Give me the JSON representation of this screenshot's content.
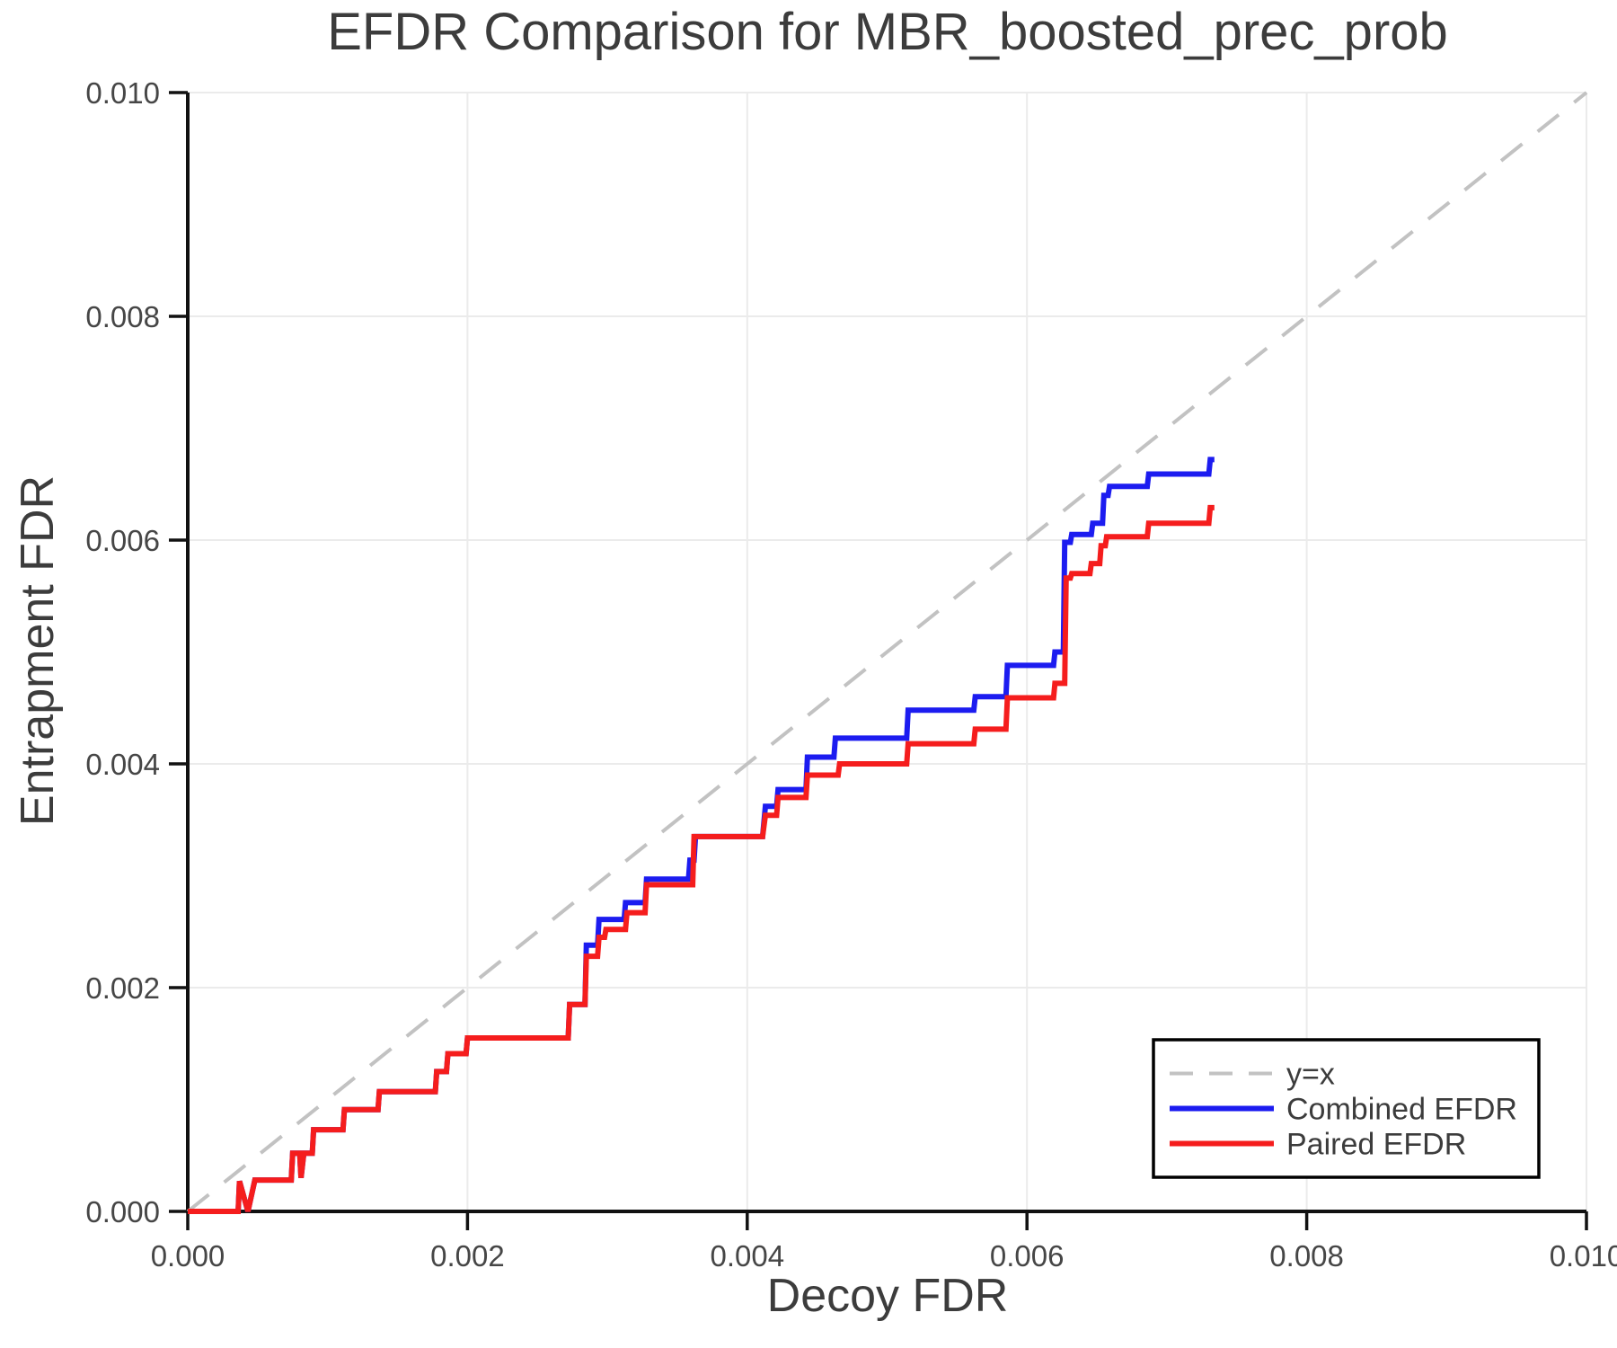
{
  "chart_data": {
    "type": "line",
    "title": "EFDR Comparison for MBR_boosted_prec_prob",
    "xlabel": "Decoy FDR",
    "ylabel": "Entrapment FDR",
    "xlim": [
      0.0,
      0.01
    ],
    "ylim": [
      0.0,
      0.01
    ],
    "grid": true,
    "xticks": {
      "values": [
        0.0,
        0.002,
        0.004,
        0.006,
        0.008,
        0.01
      ],
      "labels": [
        "0.000",
        "0.002",
        "0.004",
        "0.006",
        "0.008",
        "0.010"
      ]
    },
    "yticks": {
      "values": [
        0.0,
        0.002,
        0.004,
        0.006,
        0.008,
        0.01
      ],
      "labels": [
        "0.000",
        "0.002",
        "0.004",
        "0.006",
        "0.008",
        "0.010"
      ]
    },
    "legend": {
      "position": "lower right",
      "entries": [
        "y=x",
        "Combined EFDR",
        "Paired EFDR"
      ]
    },
    "colors": {
      "identity": "#c2c2c2",
      "combined": "#1c1cf0",
      "paired": "#f51d1d"
    },
    "series": [
      {
        "name": "y=x",
        "style": "dashed",
        "color": "#c2c2c2",
        "width": 4,
        "points": [
          [
            0.0,
            0.0
          ],
          [
            0.01,
            0.01
          ]
        ]
      },
      {
        "name": "Combined EFDR",
        "style": "solid",
        "color": "#1c1cf0",
        "width": 6,
        "points": [
          [
            0.0,
            0.0
          ],
          [
            0.00036,
            0.0
          ],
          [
            0.00037,
            0.00027
          ],
          [
            0.00043,
            0.0
          ],
          [
            0.00048,
            0.00028
          ],
          [
            0.00074,
            0.00028
          ],
          [
            0.00075,
            0.00052
          ],
          [
            0.0008,
            0.00052
          ],
          [
            0.00081,
            0.0003
          ],
          [
            0.00083,
            0.00052
          ],
          [
            0.00089,
            0.00052
          ],
          [
            0.0009,
            0.00073
          ],
          [
            0.00111,
            0.00073
          ],
          [
            0.00112,
            0.00091
          ],
          [
            0.00136,
            0.00091
          ],
          [
            0.00137,
            0.00107
          ],
          [
            0.00177,
            0.00107
          ],
          [
            0.00178,
            0.00125
          ],
          [
            0.00185,
            0.00125
          ],
          [
            0.00186,
            0.00141
          ],
          [
            0.00199,
            0.00141
          ],
          [
            0.002,
            0.00155
          ],
          [
            0.00272,
            0.00155
          ],
          [
            0.00273,
            0.00185
          ],
          [
            0.00284,
            0.00185
          ],
          [
            0.00285,
            0.00238
          ],
          [
            0.00293,
            0.00238
          ],
          [
            0.00294,
            0.00261
          ],
          [
            0.00312,
            0.00261
          ],
          [
            0.00313,
            0.00276
          ],
          [
            0.00327,
            0.00276
          ],
          [
            0.00328,
            0.00297
          ],
          [
            0.00358,
            0.00297
          ],
          [
            0.00359,
            0.00314
          ],
          [
            0.00362,
            0.00314
          ],
          [
            0.00363,
            0.00335
          ],
          [
            0.00411,
            0.00335
          ],
          [
            0.00413,
            0.00362
          ],
          [
            0.00421,
            0.00362
          ],
          [
            0.00422,
            0.00377
          ],
          [
            0.00442,
            0.00377
          ],
          [
            0.00443,
            0.00406
          ],
          [
            0.00462,
            0.00406
          ],
          [
            0.00463,
            0.00423
          ],
          [
            0.00514,
            0.00423
          ],
          [
            0.00515,
            0.00448
          ],
          [
            0.00562,
            0.00448
          ],
          [
            0.00563,
            0.0046
          ],
          [
            0.00585,
            0.0046
          ],
          [
            0.00586,
            0.00488
          ],
          [
            0.00619,
            0.00488
          ],
          [
            0.0062,
            0.005
          ],
          [
            0.00626,
            0.005
          ],
          [
            0.00627,
            0.00598
          ],
          [
            0.00631,
            0.00598
          ],
          [
            0.00632,
            0.00605
          ],
          [
            0.00646,
            0.00605
          ],
          [
            0.00647,
            0.00615
          ],
          [
            0.00654,
            0.00615
          ],
          [
            0.00655,
            0.0064
          ],
          [
            0.00658,
            0.0064
          ],
          [
            0.00659,
            0.00648
          ],
          [
            0.00686,
            0.00648
          ],
          [
            0.00687,
            0.00659
          ],
          [
            0.0073,
            0.00659
          ],
          [
            0.00731,
            0.00672
          ],
          [
            0.00734,
            0.00672
          ]
        ]
      },
      {
        "name": "Paired EFDR",
        "style": "solid",
        "color": "#f51d1d",
        "width": 6,
        "points": [
          [
            0.0,
            0.0
          ],
          [
            0.00036,
            0.0
          ],
          [
            0.00037,
            0.00027
          ],
          [
            0.00043,
            0.0
          ],
          [
            0.00048,
            0.00028
          ],
          [
            0.00074,
            0.00028
          ],
          [
            0.00075,
            0.00052
          ],
          [
            0.0008,
            0.00052
          ],
          [
            0.00081,
            0.0003
          ],
          [
            0.00083,
            0.00052
          ],
          [
            0.00089,
            0.00052
          ],
          [
            0.0009,
            0.00073
          ],
          [
            0.00111,
            0.00073
          ],
          [
            0.00112,
            0.00091
          ],
          [
            0.00136,
            0.00091
          ],
          [
            0.00137,
            0.00107
          ],
          [
            0.00177,
            0.00107
          ],
          [
            0.00178,
            0.00125
          ],
          [
            0.00185,
            0.00125
          ],
          [
            0.00186,
            0.00141
          ],
          [
            0.00199,
            0.00141
          ],
          [
            0.002,
            0.00155
          ],
          [
            0.00272,
            0.00155
          ],
          [
            0.00273,
            0.00185
          ],
          [
            0.00284,
            0.00185
          ],
          [
            0.00285,
            0.00228
          ],
          [
            0.00293,
            0.00228
          ],
          [
            0.00294,
            0.00245
          ],
          [
            0.00298,
            0.00245
          ],
          [
            0.00299,
            0.00252
          ],
          [
            0.00313,
            0.00252
          ],
          [
            0.00314,
            0.00267
          ],
          [
            0.00327,
            0.00267
          ],
          [
            0.00328,
            0.00292
          ],
          [
            0.00361,
            0.00292
          ],
          [
            0.00362,
            0.00335
          ],
          [
            0.00411,
            0.00335
          ],
          [
            0.00413,
            0.00354
          ],
          [
            0.00421,
            0.00354
          ],
          [
            0.00422,
            0.0037
          ],
          [
            0.00442,
            0.0037
          ],
          [
            0.00443,
            0.0039
          ],
          [
            0.00465,
            0.0039
          ],
          [
            0.00466,
            0.004
          ],
          [
            0.00514,
            0.004
          ],
          [
            0.00515,
            0.00418
          ],
          [
            0.00562,
            0.00418
          ],
          [
            0.00563,
            0.00431
          ],
          [
            0.00585,
            0.00431
          ],
          [
            0.00586,
            0.00459
          ],
          [
            0.00619,
            0.00459
          ],
          [
            0.0062,
            0.00472
          ],
          [
            0.00627,
            0.00472
          ],
          [
            0.00628,
            0.00566
          ],
          [
            0.00631,
            0.00566
          ],
          [
            0.00632,
            0.0057
          ],
          [
            0.00645,
            0.0057
          ],
          [
            0.00646,
            0.00579
          ],
          [
            0.00652,
            0.00579
          ],
          [
            0.00653,
            0.00595
          ],
          [
            0.00656,
            0.00595
          ],
          [
            0.00657,
            0.00603
          ],
          [
            0.00686,
            0.00603
          ],
          [
            0.00687,
            0.00615
          ],
          [
            0.0073,
            0.00615
          ],
          [
            0.00731,
            0.00629
          ],
          [
            0.00734,
            0.00629
          ]
        ]
      }
    ]
  }
}
